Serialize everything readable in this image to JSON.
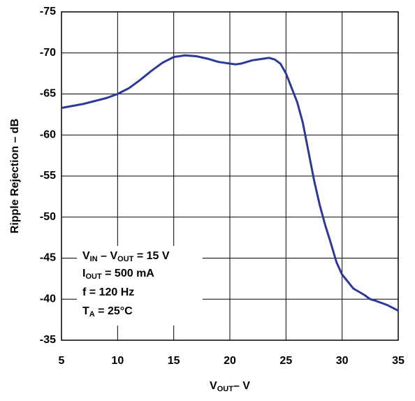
{
  "chart_data": {
    "type": "line",
    "ylabel": "Ripple Rejection – dB",
    "xlabel": [
      "V",
      "OUT",
      "– V"
    ],
    "annotation": [
      [
        "V",
        "IN",
        " – V",
        "OUT",
        " = 15 V"
      ],
      [
        "I",
        "OUT",
        " = 500 mA"
      ],
      [
        "f = 120 Hz"
      ],
      [
        "T",
        "A",
        " = 25°C"
      ]
    ],
    "x": [
      5,
      7,
      9,
      10,
      11,
      12,
      13,
      14,
      15,
      16,
      17,
      18,
      19,
      20,
      20.5,
      21,
      22,
      23,
      23.5,
      24,
      24.5,
      25,
      26,
      26.5,
      27,
      27.5,
      28,
      28.5,
      29,
      29.5,
      30,
      31,
      32,
      32.5,
      33,
      34,
      35
    ],
    "series": [
      {
        "color": "#2b3a98",
        "values": [
          -63.3,
          -63.8,
          -64.5,
          -65.0,
          -65.7,
          -66.7,
          -67.8,
          -68.8,
          -69.5,
          -69.7,
          -69.6,
          -69.3,
          -68.9,
          -68.7,
          -68.6,
          -68.7,
          -69.1,
          -69.3,
          -69.4,
          -69.2,
          -68.7,
          -67.5,
          -64.0,
          -61.5,
          -58.0,
          -54.5,
          -51.5,
          -49.0,
          -46.8,
          -44.5,
          -43.0,
          -41.3,
          -40.5,
          -40.0,
          -39.8,
          -39.3,
          -38.6
        ]
      }
    ],
    "xlim": [
      5,
      35
    ],
    "xticks": [
      5,
      10,
      15,
      20,
      25,
      30,
      35
    ],
    "ylim": [
      -35,
      -75
    ],
    "yticks": [
      -75,
      -70,
      -65,
      -60,
      -55,
      -50,
      -45,
      -40,
      -35
    ],
    "grid": true
  }
}
